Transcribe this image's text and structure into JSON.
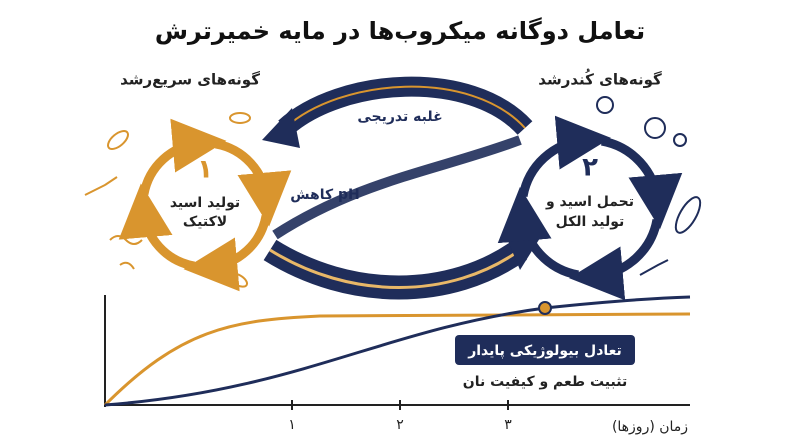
{
  "header": {
    "title": "تعامل دوگانه میکروب‌ها در مایه خمیرترش"
  },
  "left": {
    "label": "گونه‌های سریع‌رشد",
    "number": "۱",
    "text": [
      "تولید اسید",
      "لاکتیک"
    ]
  },
  "right": {
    "label": "گونه‌های کُندرشد",
    "number": "۲",
    "text": [
      "تحمل اسید و",
      "تولید الکل"
    ]
  },
  "arrows": {
    "top": "غلبه تدریجی",
    "middle": "کاهش pH"
  },
  "graph": {
    "badge": "تعادل بیولوژیکی پایدار",
    "caption": "تثبیت طعم و کیفیت نان",
    "x_label": "زمان (روزها)",
    "ticks": [
      "۱",
      "۲",
      "۳"
    ]
  }
}
